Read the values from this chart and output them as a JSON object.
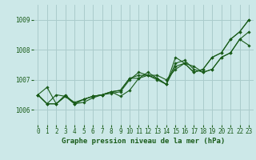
{
  "title": "Graphe pression niveau de la mer (hPa)",
  "bg_color": "#cce8e8",
  "grid_color": "#aacccc",
  "line_color": "#1a5c1a",
  "marker_color": "#1a5c1a",
  "xlim": [
    -0.5,
    23.5
  ],
  "ylim": [
    1005.5,
    1009.5
  ],
  "yticks": [
    1006,
    1007,
    1008,
    1009
  ],
  "xticks": [
    0,
    1,
    2,
    3,
    4,
    5,
    6,
    7,
    8,
    9,
    10,
    11,
    12,
    13,
    14,
    15,
    16,
    17,
    18,
    19,
    20,
    21,
    22,
    23
  ],
  "series": [
    [
      1006.5,
      1006.75,
      1006.2,
      1006.45,
      1006.2,
      1006.25,
      1006.4,
      1006.5,
      1006.55,
      1006.6,
      1007.0,
      1007.25,
      1007.15,
      1007.0,
      1006.85,
      1007.75,
      1007.55,
      1007.25,
      1007.35,
      1007.75,
      1007.9,
      1008.35,
      1008.6,
      1009.0
    ],
    [
      1006.5,
      1006.2,
      1006.2,
      1006.45,
      1006.2,
      1006.35,
      1006.45,
      1006.5,
      1006.6,
      1006.65,
      1007.05,
      1007.05,
      1007.15,
      1007.15,
      1007.0,
      1007.35,
      1007.55,
      1007.25,
      1007.35,
      1007.75,
      1007.9,
      1008.35,
      1008.6,
      1009.0
    ],
    [
      1006.5,
      1006.2,
      1006.2,
      1006.5,
      1006.2,
      1006.35,
      1006.45,
      1006.5,
      1006.6,
      1006.45,
      1006.65,
      1007.05,
      1007.25,
      1007.05,
      1006.85,
      1007.55,
      1007.65,
      1007.35,
      1007.25,
      1007.35,
      1007.75,
      1007.9,
      1008.35,
      1008.6
    ],
    [
      1006.5,
      1006.2,
      1006.5,
      1006.45,
      1006.25,
      1006.35,
      1006.45,
      1006.5,
      1006.6,
      1006.65,
      1007.05,
      1007.15,
      1007.15,
      1007.05,
      1006.85,
      1007.45,
      1007.55,
      1007.45,
      1007.25,
      1007.35,
      1007.75,
      1007.9,
      1008.35,
      1008.15
    ]
  ],
  "xlabel_fontsize": 6.5,
  "tick_fontsize": 5.5
}
